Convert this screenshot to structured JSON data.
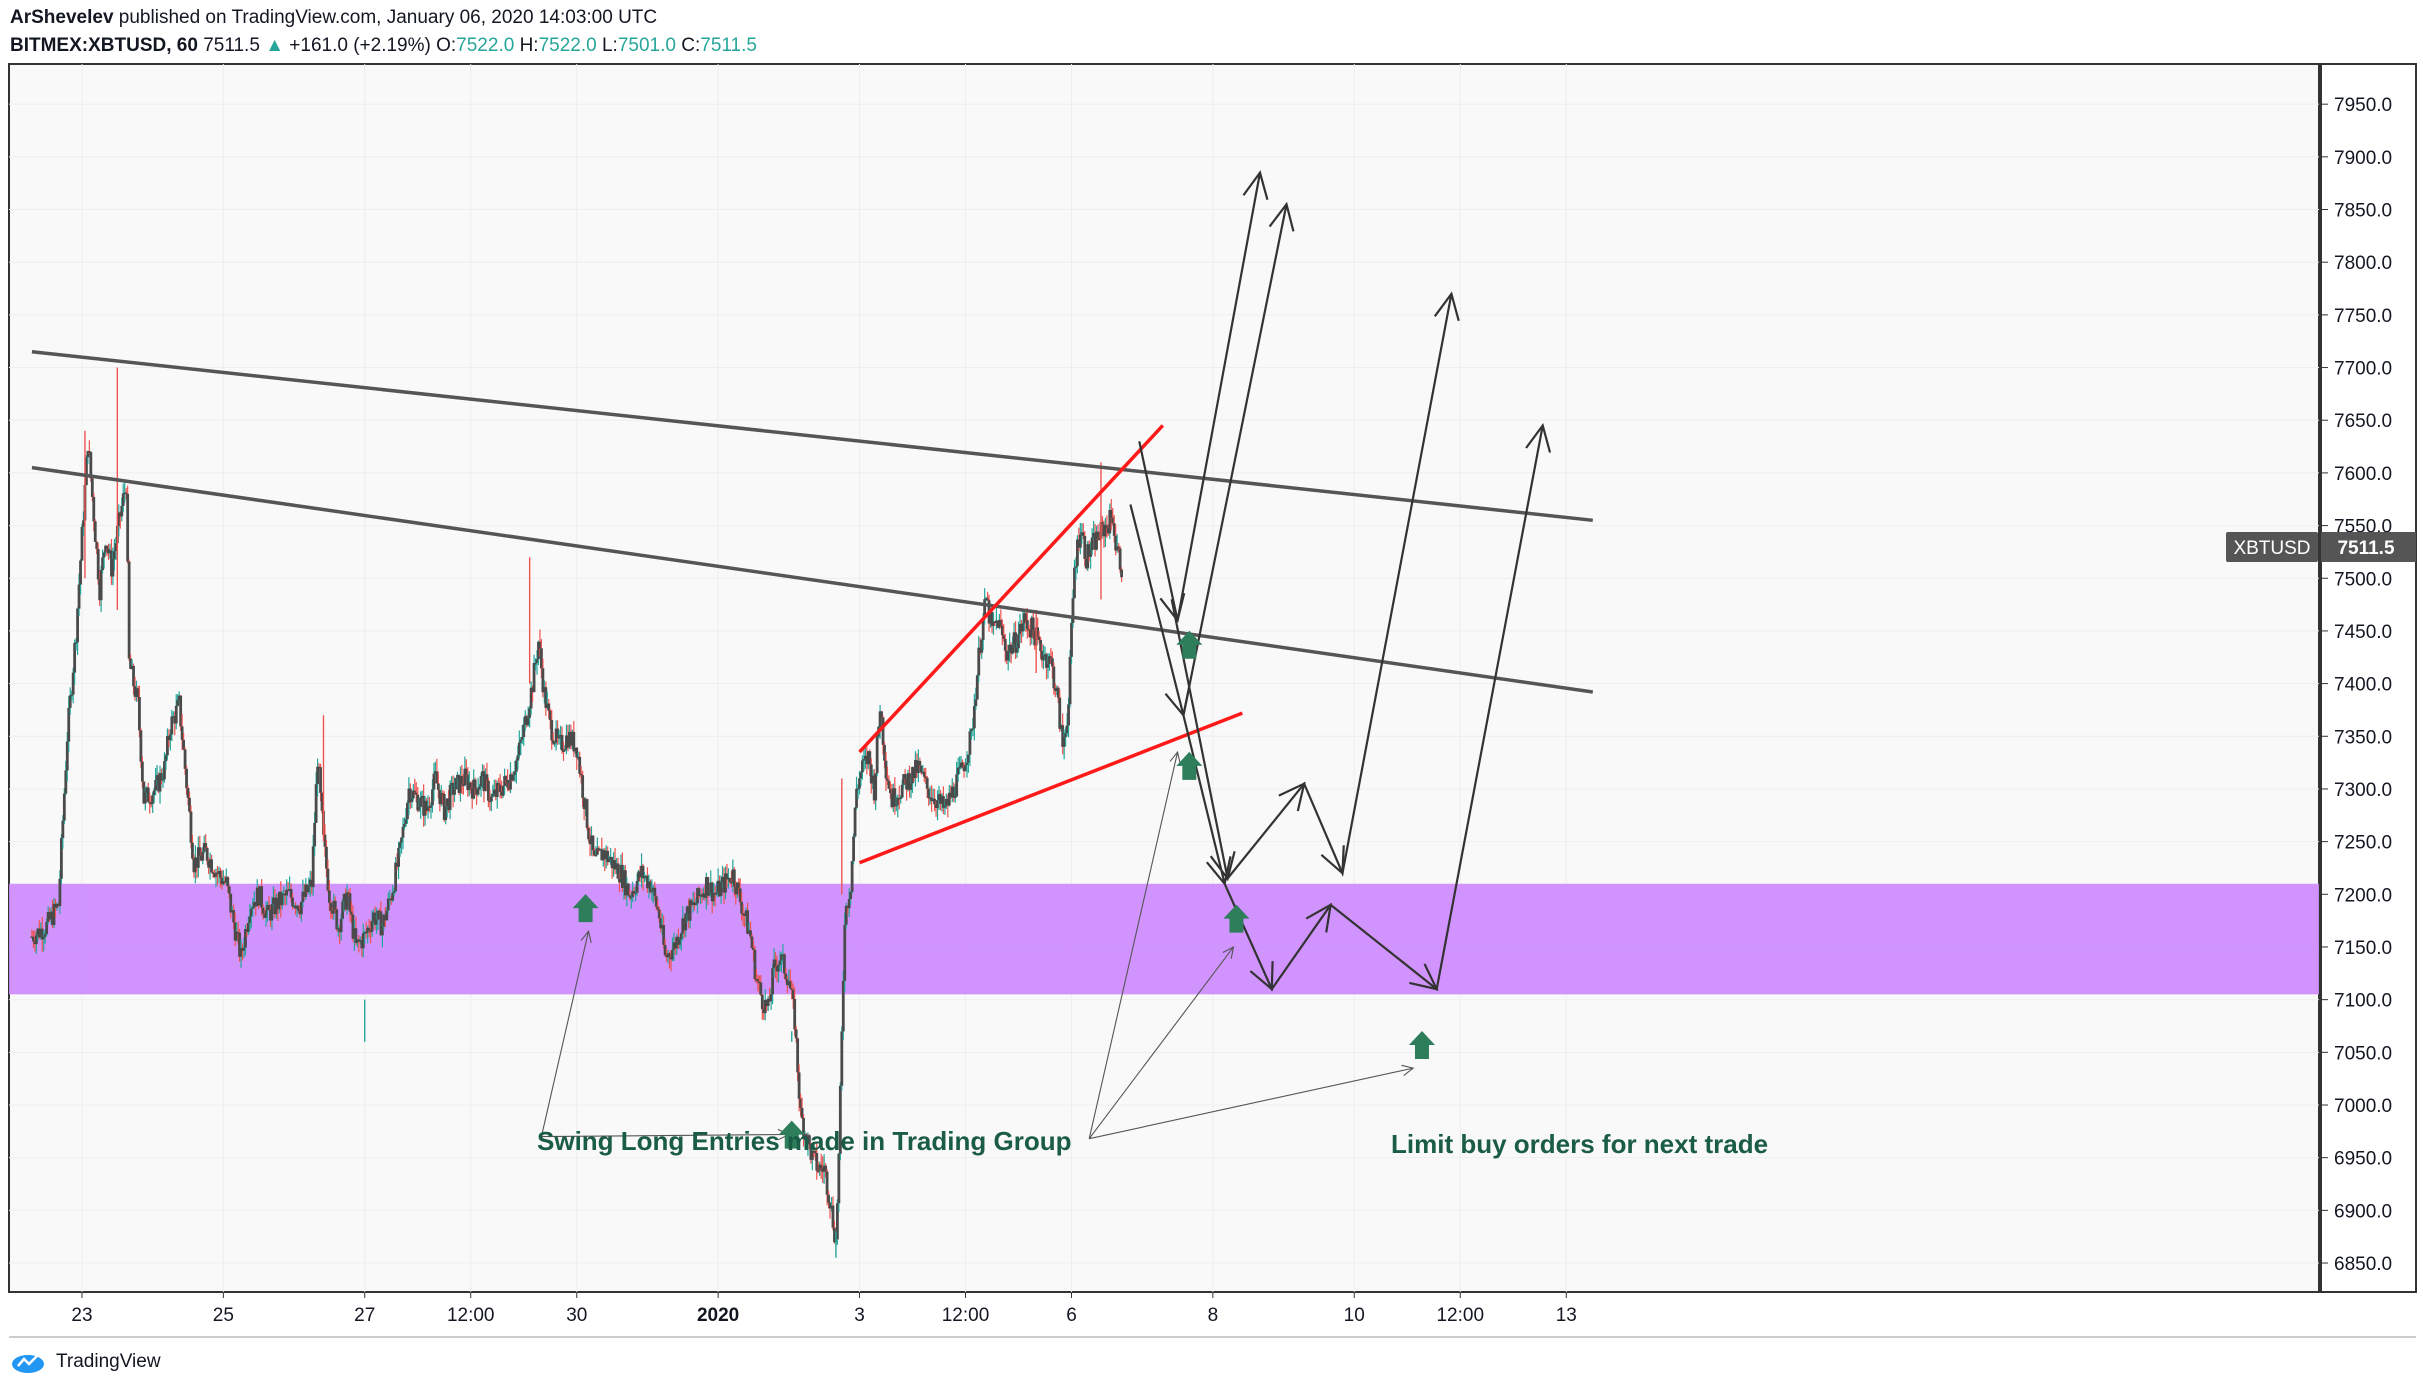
{
  "header": {
    "author": "ArShevelev",
    "published": "published on TradingView.com, January 06, 2020 14:03:00 UTC",
    "symbol": "BITMEX:XBTUSD, 60",
    "last": "7511.5",
    "change_arrow": "▲",
    "change": "+161.0 (+2.19%)",
    "o_label": "O:",
    "o_value": "7522.0",
    "h_label": "H:",
    "h_value": "7522.0",
    "l_label": "L:",
    "l_value": "7501.0",
    "c_label": "C:",
    "c_value": "7511.5"
  },
  "footer": {
    "brand": "TradingView",
    "logo_icon": "tradingview-logo-icon"
  },
  "price_tag": {
    "symbol": "XBTUSD",
    "value": "7511.5"
  },
  "annotations": {
    "swing_text": "Swing Long Entries made in Trading Group",
    "limit_text": "Limit buy orders for next trade"
  },
  "colors": {
    "up": "#26a69a",
    "down": "#ef5350",
    "candle_body": "#4a4a4a",
    "zone": "#cc88ff",
    "wedge": "#ff1a1a",
    "trendline": "#555555",
    "annotation_text": "#1a5c45",
    "arrow_marker": "#2e7d5b"
  },
  "chart_data": {
    "type": "candlestick",
    "y_axis": {
      "min": 6820,
      "max": 7970,
      "ticks": [
        "7950.0",
        "7900.0",
        "7850.0",
        "7800.0",
        "7750.0",
        "7700.0",
        "7650.0",
        "7600.0",
        "7550.0",
        "7500.0",
        "7450.0",
        "7400.0",
        "7350.0",
        "7300.0",
        "7250.0",
        "7200.0",
        "7150.0",
        "7100.0",
        "7050.0",
        "7000.0",
        "6950.0",
        "6900.0",
        "6850.0"
      ]
    },
    "x_axis": {
      "ticks": [
        {
          "label": "23",
          "x": 0
        },
        {
          "label": "25",
          "x": 48
        },
        {
          "label": "27",
          "x": 96
        },
        {
          "label": "12:00",
          "x": 132
        },
        {
          "label": "30",
          "x": 168
        },
        {
          "label": "2020",
          "x": 216
        },
        {
          "label": "3",
          "x": 264
        },
        {
          "label": "12:00",
          "x": 300
        },
        {
          "label": "6",
          "x": 336
        },
        {
          "label": "8",
          "x": 384
        },
        {
          "label": "10",
          "x": 432
        },
        {
          "label": "12:00",
          "x": 468
        },
        {
          "label": "13",
          "x": 504
        }
      ],
      "bold_ticks": [
        "2020"
      ]
    },
    "x_range": [
      -17,
      513
    ],
    "price_path": [
      [
        -17,
        7160
      ],
      [
        -12,
        7170
      ],
      [
        -8,
        7190
      ],
      [
        -5,
        7350
      ],
      [
        -2,
        7450
      ],
      [
        0,
        7540
      ],
      [
        2,
        7630
      ],
      [
        4,
        7560
      ],
      [
        6,
        7490
      ],
      [
        8,
        7540
      ],
      [
        10,
        7510
      ],
      [
        13,
        7560
      ],
      [
        15,
        7590
      ],
      [
        16,
        7420
      ],
      [
        19,
        7380
      ],
      [
        21,
        7290
      ],
      [
        25,
        7300
      ],
      [
        28,
        7320
      ],
      [
        30,
        7360
      ],
      [
        33,
        7380
      ],
      [
        36,
        7290
      ],
      [
        38,
        7230
      ],
      [
        42,
        7240
      ],
      [
        46,
        7220
      ],
      [
        49,
        7210
      ],
      [
        51,
        7180
      ],
      [
        54,
        7140
      ],
      [
        57,
        7190
      ],
      [
        60,
        7200
      ],
      [
        63,
        7180
      ],
      [
        66,
        7190
      ],
      [
        70,
        7200
      ],
      [
        74,
        7190
      ],
      [
        78,
        7210
      ],
      [
        80,
        7330
      ],
      [
        82,
        7250
      ],
      [
        84,
        7200
      ],
      [
        87,
        7170
      ],
      [
        90,
        7200
      ],
      [
        93,
        7150
      ],
      [
        96,
        7160
      ],
      [
        99,
        7180
      ],
      [
        102,
        7170
      ],
      [
        105,
        7200
      ],
      [
        108,
        7240
      ],
      [
        111,
        7300
      ],
      [
        114,
        7290
      ],
      [
        117,
        7280
      ],
      [
        120,
        7310
      ],
      [
        123,
        7280
      ],
      [
        126,
        7300
      ],
      [
        130,
        7310
      ],
      [
        133,
        7300
      ],
      [
        136,
        7310
      ],
      [
        139,
        7290
      ],
      [
        142,
        7300
      ],
      [
        145,
        7310
      ],
      [
        148,
        7330
      ],
      [
        151,
        7370
      ],
      [
        153,
        7400
      ],
      [
        155,
        7440
      ],
      [
        157,
        7390
      ],
      [
        159,
        7360
      ],
      [
        162,
        7340
      ],
      [
        165,
        7350
      ],
      [
        168,
        7340
      ],
      [
        170,
        7300
      ],
      [
        172,
        7260
      ],
      [
        174,
        7230
      ],
      [
        177,
        7240
      ],
      [
        180,
        7230
      ],
      [
        183,
        7220
      ],
      [
        186,
        7200
      ],
      [
        190,
        7220
      ],
      [
        193,
        7210
      ],
      [
        196,
        7180
      ],
      [
        198,
        7140
      ],
      [
        201,
        7150
      ],
      [
        205,
        7180
      ],
      [
        208,
        7190
      ],
      [
        212,
        7210
      ],
      [
        215,
        7200
      ],
      [
        218,
        7210
      ],
      [
        221,
        7220
      ],
      [
        224,
        7190
      ],
      [
        227,
        7160
      ],
      [
        229,
        7120
      ],
      [
        231,
        7100
      ],
      [
        233,
        7090
      ],
      [
        235,
        7130
      ],
      [
        237,
        7140
      ],
      [
        240,
        7120
      ],
      [
        242,
        7080
      ],
      [
        244,
        6990
      ],
      [
        246,
        6970
      ],
      [
        248,
        6950
      ],
      [
        250,
        6940
      ],
      [
        252,
        6940
      ],
      [
        254,
        6910
      ],
      [
        256,
        6870
      ],
      [
        257,
        6950
      ],
      [
        259,
        7180
      ],
      [
        261,
        7210
      ],
      [
        263,
        7300
      ],
      [
        265,
        7320
      ],
      [
        267,
        7330
      ],
      [
        269,
        7300
      ],
      [
        271,
        7380
      ],
      [
        273,
        7320
      ],
      [
        275,
        7290
      ],
      [
        278,
        7300
      ],
      [
        281,
        7310
      ],
      [
        284,
        7320
      ],
      [
        287,
        7300
      ],
      [
        290,
        7290
      ],
      [
        293,
        7280
      ],
      [
        296,
        7300
      ],
      [
        299,
        7320
      ],
      [
        302,
        7350
      ],
      [
        305,
        7440
      ],
      [
        307,
        7480
      ],
      [
        309,
        7450
      ],
      [
        311,
        7460
      ],
      [
        314,
        7430
      ],
      [
        317,
        7440
      ],
      [
        320,
        7460
      ],
      [
        323,
        7450
      ],
      [
        326,
        7430
      ],
      [
        329,
        7420
      ],
      [
        331,
        7390
      ],
      [
        333,
        7340
      ],
      [
        335,
        7380
      ],
      [
        336,
        7450
      ],
      [
        337,
        7510
      ],
      [
        339,
        7550
      ],
      [
        341,
        7520
      ],
      [
        343,
        7530
      ],
      [
        345,
        7540
      ],
      [
        348,
        7550
      ],
      [
        350,
        7560
      ],
      [
        351,
        7530
      ],
      [
        353,
        7511.5
      ]
    ],
    "wicks": [
      [
        1,
        7640,
        7500
      ],
      [
        12,
        7700,
        7470
      ],
      [
        96,
        7060,
        7100
      ],
      [
        152,
        7520,
        7400
      ],
      [
        241,
        7060,
        7070
      ],
      [
        256,
        6855,
        6880
      ],
      [
        258,
        7310,
        7200
      ],
      [
        324,
        7470,
        7410
      ],
      [
        346,
        7610,
        7480
      ],
      [
        82,
        7370,
        7250
      ]
    ],
    "zone": {
      "from": 7105,
      "to": 7210,
      "label": ""
    },
    "trendlines": [
      {
        "name": "upper-channel",
        "p1": [
          -17,
          7715
        ],
        "p2": [
          513,
          7555
        ]
      },
      {
        "name": "lower-channel",
        "p1": [
          -17,
          7605
        ],
        "p2": [
          513,
          7392
        ]
      }
    ],
    "wedge": [
      {
        "name": "wedge-top",
        "p1": [
          264,
          7335
        ],
        "p2": [
          367,
          7645
        ]
      },
      {
        "name": "wedge-bottom",
        "p1": [
          264,
          7230
        ],
        "p2": [
          394,
          7372
        ]
      }
    ],
    "projections": [
      [
        [
          359,
          7630
        ],
        [
          372,
          7460
        ],
        [
          400,
          7885
        ]
      ],
      [
        [
          356,
          7570
        ],
        [
          374,
          7370
        ],
        [
          409,
          7855
        ]
      ],
      [
        [
          370,
          7480
        ],
        [
          389,
          7215
        ],
        [
          415,
          7305
        ],
        [
          428,
          7220
        ],
        [
          465,
          7770
        ]
      ],
      [
        [
          374,
          7370
        ],
        [
          388,
          7210
        ],
        [
          404,
          7110
        ],
        [
          424,
          7190
        ],
        [
          460,
          7110
        ],
        [
          496,
          7645
        ]
      ]
    ],
    "buy_markers": [
      [
        171,
        7185
      ],
      [
        241,
        6970
      ],
      [
        376,
        7435
      ],
      [
        376,
        7320
      ],
      [
        392,
        7175
      ],
      [
        455,
        7055
      ]
    ],
    "annotation_lines": {
      "swing": {
        "from": [
          156,
          6970
        ],
        "to": [
          [
            172,
            7165
          ],
          [
            240,
            6972
          ]
        ]
      },
      "limit": {
        "from": [
          342,
          6968
        ],
        "to": [
          [
            372,
            7335
          ],
          [
            391,
            7150
          ],
          [
            452,
            7035
          ]
        ]
      }
    }
  }
}
